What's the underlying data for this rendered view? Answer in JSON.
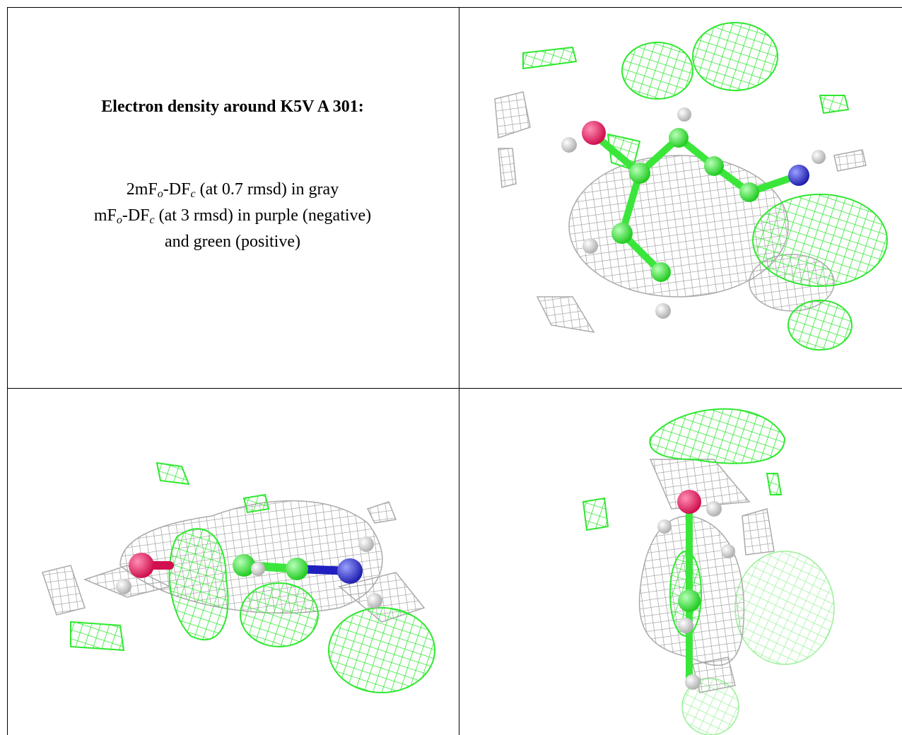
{
  "legend": {
    "title": "Electron density around K5V A 301:",
    "lines": [
      [
        "2mF",
        "o",
        "-DF",
        "c",
        " (at 0.7 rmsd) in gray"
      ],
      [
        "mF",
        "o",
        "-DF",
        "c",
        " (at 3 rmsd) in purple (negative)"
      ],
      [
        "and green (positive)"
      ]
    ]
  }
}
